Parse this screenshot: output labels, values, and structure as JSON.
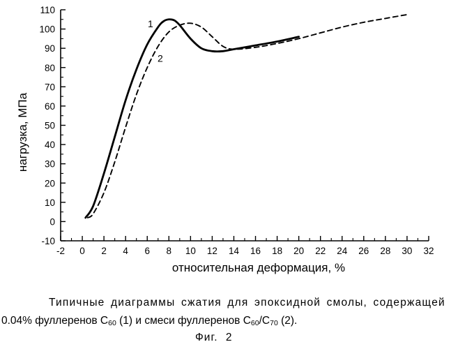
{
  "chart_data": {
    "type": "line",
    "title": "",
    "xlabel": "относительная деформация, %",
    "ylabel": "нагрузка, МПа",
    "xlim": [
      -2,
      32
    ],
    "ylim": [
      -10,
      110
    ],
    "x_ticks": [
      "-2",
      "0",
      "2",
      "4",
      "6",
      "8",
      "10",
      "12",
      "14",
      "16",
      "18",
      "20",
      "22",
      "24",
      "26",
      "28",
      "30",
      "32"
    ],
    "y_ticks": [
      "-10",
      "0",
      "10",
      "20",
      "30",
      "40",
      "50",
      "60",
      "70",
      "80",
      "90",
      "100",
      "110"
    ],
    "grid": false,
    "series": [
      {
        "name": "1",
        "style": "solid",
        "color": "#000000",
        "x": [
          0.3,
          1,
          2,
          3,
          4,
          5,
          6,
          7,
          7.5,
          8,
          8.5,
          9,
          10,
          11,
          12,
          13,
          14,
          16,
          18,
          20
        ],
        "y": [
          2,
          8,
          25,
          44,
          63,
          79,
          92,
          101,
          104,
          105,
          104.5,
          102,
          95,
          90,
          88.5,
          88.5,
          89.5,
          91.5,
          93.5,
          96
        ]
      },
      {
        "name": "2",
        "style": "dashed",
        "color": "#000000",
        "x": [
          0.5,
          1,
          2,
          3,
          4,
          5,
          6,
          7,
          8,
          9,
          10,
          11,
          12,
          13,
          14,
          16,
          18,
          20,
          22,
          24,
          26,
          28,
          30
        ],
        "y": [
          2,
          4,
          15,
          31,
          49,
          66,
          80,
          91,
          98.5,
          102,
          103,
          101,
          96,
          91,
          89.5,
          90.5,
          92.5,
          95,
          98,
          101,
          103.5,
          105.5,
          107.5
        ]
      }
    ],
    "curve_labels": [
      {
        "text": "1",
        "x": 6.3,
        "y": 101
      },
      {
        "text": "2",
        "x": 7.2,
        "y": 83
      }
    ]
  },
  "caption": {
    "line1": "Типичные диаграммы сжатия для эпоксидной смолы, содержащей",
    "line2_parts": [
      "0.04% фуллеренов C",
      "60",
      " (1) и смеси фуллеренов C",
      "60",
      "/C",
      "70",
      " (2)."
    ],
    "figure_label": "Фиг. 2"
  }
}
